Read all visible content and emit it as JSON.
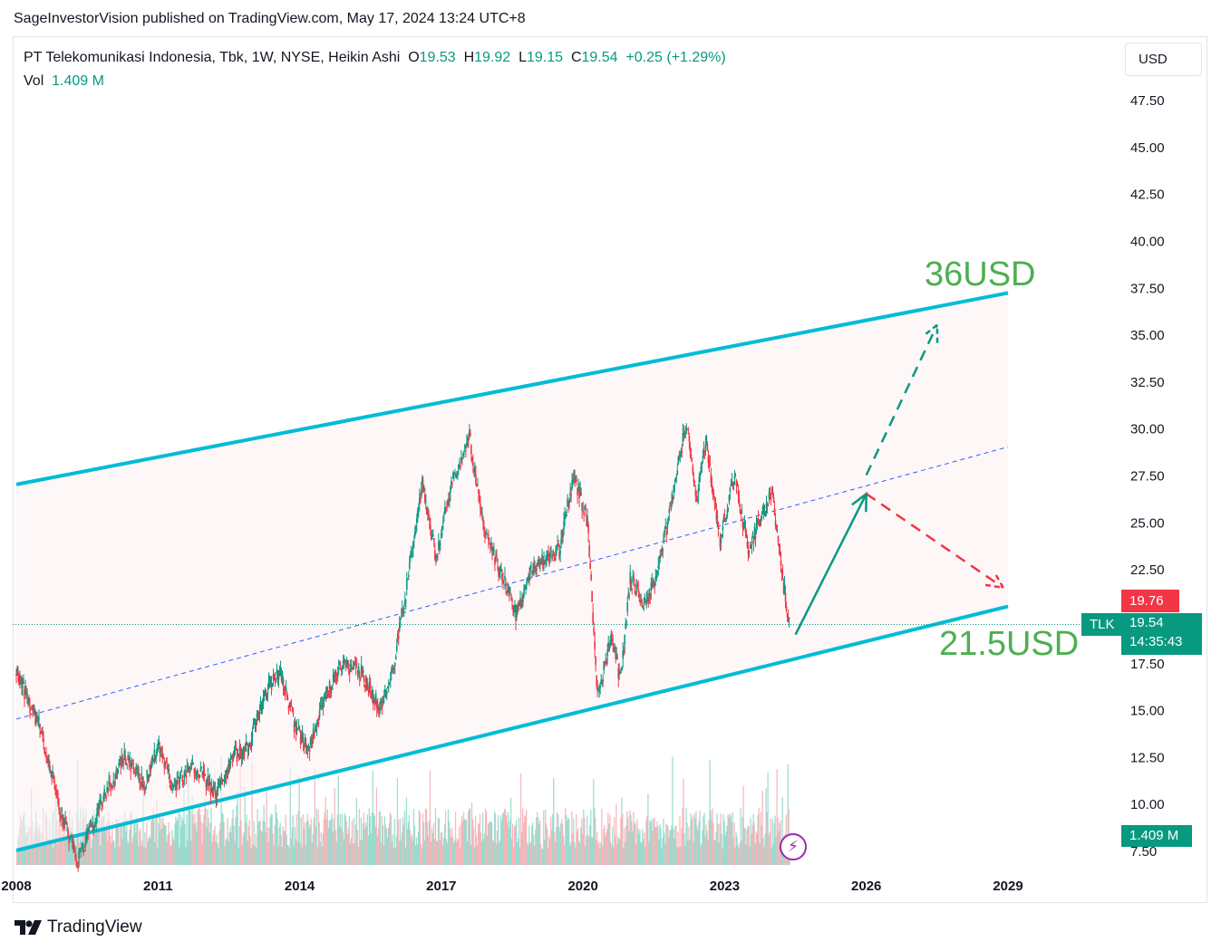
{
  "header": {
    "text": "SageInvestorVision published on TradingView.com, May 17, 2024 13:24 UTC+8"
  },
  "legend": {
    "name": "PT Telekomunikasi Indonesia, Tbk, 1W, NYSE, Heikin Ashi",
    "o_label": "O",
    "o_value": "19.53",
    "h_label": "H",
    "h_value": "19.92",
    "l_label": "L",
    "l_value": "19.15",
    "c_label": "C",
    "c_value": "19.54",
    "change": "+0.25 (+1.29%)",
    "vol_label": "Vol",
    "vol_value": "1.409 M"
  },
  "currency_button": "USD",
  "price_tags": {
    "prev": "19.76",
    "symbol": "TLK",
    "last": "19.54",
    "countdown": "14:35:43",
    "volume": "1.409 M"
  },
  "annotations": {
    "target_high": "36USD",
    "target_low": "21.5USD"
  },
  "footer": {
    "brand": "TradingView"
  },
  "icons": {
    "flash": "lightning-icon",
    "logo": "tradingview-logo-icon"
  },
  "colors": {
    "up": "#089981",
    "down": "#f23645",
    "channel": "#00bcd4",
    "note": "#4caf50",
    "midline": "#2962ff"
  },
  "chart_data": {
    "type": "candlestick",
    "symbol": "TLK",
    "exchange": "NYSE",
    "interval": "1W",
    "style": "Heikin Ashi",
    "currency": "USD",
    "x_ticks": [
      "2008",
      "2011",
      "2014",
      "2017",
      "2020",
      "2023",
      "2026",
      "2029"
    ],
    "y_ticks": [
      "47.50",
      "45.00",
      "42.50",
      "40.00",
      "37.50",
      "35.00",
      "32.50",
      "30.00",
      "27.50",
      "25.00",
      "22.50",
      "17.50",
      "15.00",
      "12.50",
      "10.00",
      "7.50"
    ],
    "ylim": [
      6.5,
      48.5
    ],
    "xlim": [
      2008.0,
      2030.2
    ],
    "grid": false,
    "last_price": 19.54,
    "previous_close": 19.76,
    "price_path": [
      [
        2008.0,
        17.0
      ],
      [
        2008.5,
        14.0
      ],
      [
        2009.0,
        9.0
      ],
      [
        2009.3,
        7.0
      ],
      [
        2009.8,
        10.0
      ],
      [
        2010.3,
        12.5
      ],
      [
        2010.7,
        11.0
      ],
      [
        2011.0,
        13.0
      ],
      [
        2011.3,
        11.0
      ],
      [
        2011.8,
        12.0
      ],
      [
        2012.2,
        10.5
      ],
      [
        2012.6,
        12.5
      ],
      [
        2012.9,
        13.0
      ],
      [
        2013.3,
        16.0
      ],
      [
        2013.6,
        17.0
      ],
      [
        2013.9,
        14.0
      ],
      [
        2014.2,
        13.0
      ],
      [
        2014.6,
        16.0
      ],
      [
        2014.9,
        17.5
      ],
      [
        2015.3,
        17.0
      ],
      [
        2015.7,
        15.0
      ],
      [
        2016.0,
        17.5
      ],
      [
        2016.3,
        22.0
      ],
      [
        2016.6,
        27.0
      ],
      [
        2016.9,
        23.0
      ],
      [
        2017.2,
        27.0
      ],
      [
        2017.6,
        29.5
      ],
      [
        2017.9,
        24.5
      ],
      [
        2018.3,
        22.0
      ],
      [
        2018.6,
        20.0
      ],
      [
        2018.9,
        22.5
      ],
      [
        2019.2,
        23.0
      ],
      [
        2019.5,
        23.5
      ],
      [
        2019.8,
        27.5
      ],
      [
        2020.1,
        25.0
      ],
      [
        2020.3,
        15.5
      ],
      [
        2020.6,
        19.0
      ],
      [
        2020.8,
        16.5
      ],
      [
        2021.0,
        22.0
      ],
      [
        2021.3,
        20.5
      ],
      [
        2021.6,
        22.5
      ],
      [
        2021.9,
        26.5
      ],
      [
        2022.2,
        30.5
      ],
      [
        2022.4,
        26.0
      ],
      [
        2022.6,
        29.5
      ],
      [
        2022.9,
        24.0
      ],
      [
        2023.2,
        27.5
      ],
      [
        2023.5,
        23.5
      ],
      [
        2023.8,
        25.5
      ],
      [
        2024.0,
        26.5
      ],
      [
        2024.2,
        22.5
      ],
      [
        2024.37,
        19.54
      ]
    ],
    "channel": {
      "upper": [
        [
          2008.0,
          27.0
        ],
        [
          2029.0,
          37.2
        ]
      ],
      "lower": [
        [
          2008.0,
          7.5
        ],
        [
          2029.0,
          20.5
        ]
      ],
      "middle": [
        [
          2008.0,
          14.5
        ],
        [
          2029.0,
          29.0
        ]
      ]
    },
    "projections": {
      "solid_up": [
        [
          2024.5,
          19.0
        ],
        [
          2026.0,
          26.5
        ]
      ],
      "dashed_up": [
        [
          2026.0,
          27.5
        ],
        [
          2027.5,
          35.5
        ]
      ],
      "dashed_down": [
        [
          2026.0,
          26.5
        ],
        [
          2028.9,
          21.5
        ]
      ]
    },
    "annotations": [
      "36USD",
      "21.5USD"
    ]
  }
}
